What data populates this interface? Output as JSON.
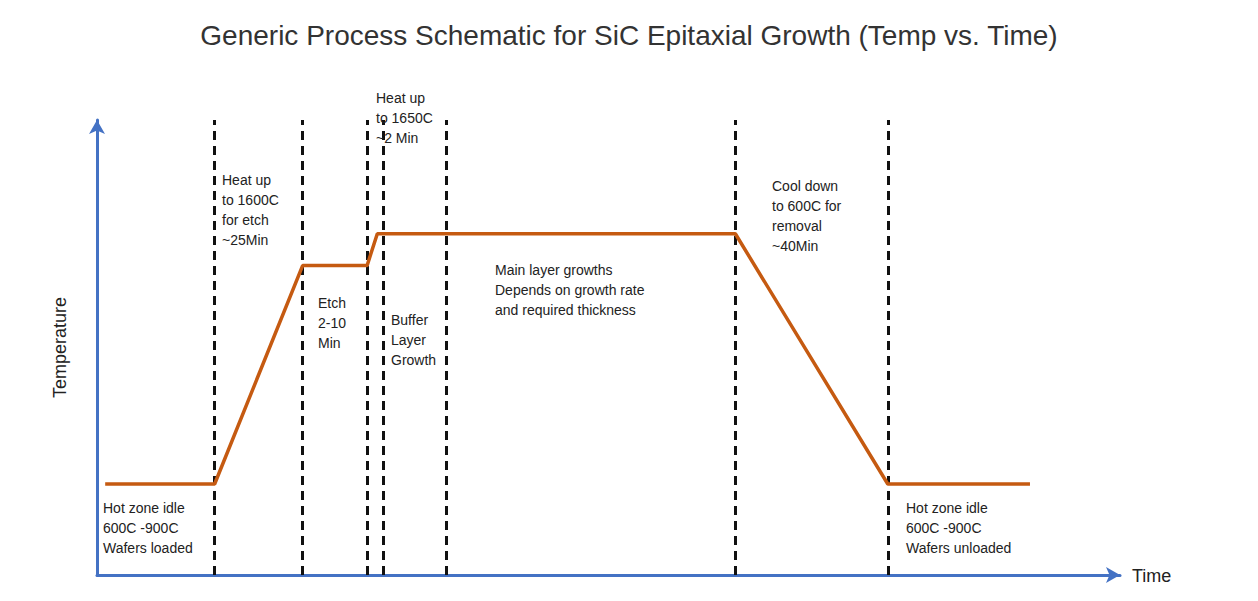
{
  "chart_data": {
    "type": "line",
    "title": "Generic Process Schematic for SiC Epitaxial Growth (Temp vs. Time)",
    "x_label": "Time",
    "y_label": "Temperature",
    "x": [
      0.8,
      11.5,
      20.1,
      26.4,
      27.4,
      62.4,
      77.3,
      91.2
    ],
    "values": [
      20,
      20,
      68,
      68,
      75,
      75,
      20,
      20
    ],
    "color": "#c55a11",
    "xlim": [
      0,
      100
    ],
    "ylim": [
      0,
      100
    ],
    "xticks": [],
    "yticks": [],
    "tick_labels": false,
    "grid": false,
    "phase_boundaries": [
      11.5,
      20.1,
      26.4,
      28.0,
      34.1,
      62.4,
      77.3
    ],
    "annotations": [
      "Heat up\nto 1600C\nfor etch\n~25Min",
      "Heat up\nto 1650C\n~2 Min",
      "Etch\n2-10\nMin",
      "Buffer\nLayer\nGrowth",
      "Main layer growths\nDepends on growth rate\nand required thickness",
      "Cool down\nto 600C for\nremoval\n~40Min",
      "Hot zone idle\n600C -900C\nWafers loaded",
      "Hot zone idle\n600C -900C\nWafers unloaded"
    ]
  }
}
